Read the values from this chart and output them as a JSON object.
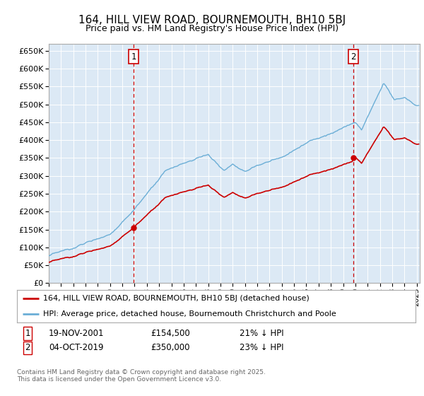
{
  "title": "164, HILL VIEW ROAD, BOURNEMOUTH, BH10 5BJ",
  "subtitle": "Price paid vs. HM Land Registry's House Price Index (HPI)",
  "ylim": [
    0,
    670000
  ],
  "yticks": [
    0,
    50000,
    100000,
    150000,
    200000,
    250000,
    300000,
    350000,
    400000,
    450000,
    500000,
    550000,
    600000,
    650000
  ],
  "bg_color": "#dce9f5",
  "grid_color": "#ffffff",
  "hpi_color": "#6baed6",
  "price_color": "#cc0000",
  "sale1_date_num": 2001.875,
  "sale1_price": 154500,
  "sale1_label": "1",
  "sale2_date_num": 2019.75,
  "sale2_price": 350000,
  "sale2_label": "2",
  "legend_line1": "164, HILL VIEW ROAD, BOURNEMOUTH, BH10 5BJ (detached house)",
  "legend_line2": "HPI: Average price, detached house, Bournemouth Christchurch and Poole",
  "note1_label": "1",
  "note1_date": "19-NOV-2001",
  "note1_price": "£154,500",
  "note1_hpi": "21% ↓ HPI",
  "note2_label": "2",
  "note2_date": "04-OCT-2019",
  "note2_price": "£350,000",
  "note2_hpi": "23% ↓ HPI",
  "copyright": "Contains HM Land Registry data © Crown copyright and database right 2025.\nThis data is licensed under the Open Government Licence v3.0."
}
